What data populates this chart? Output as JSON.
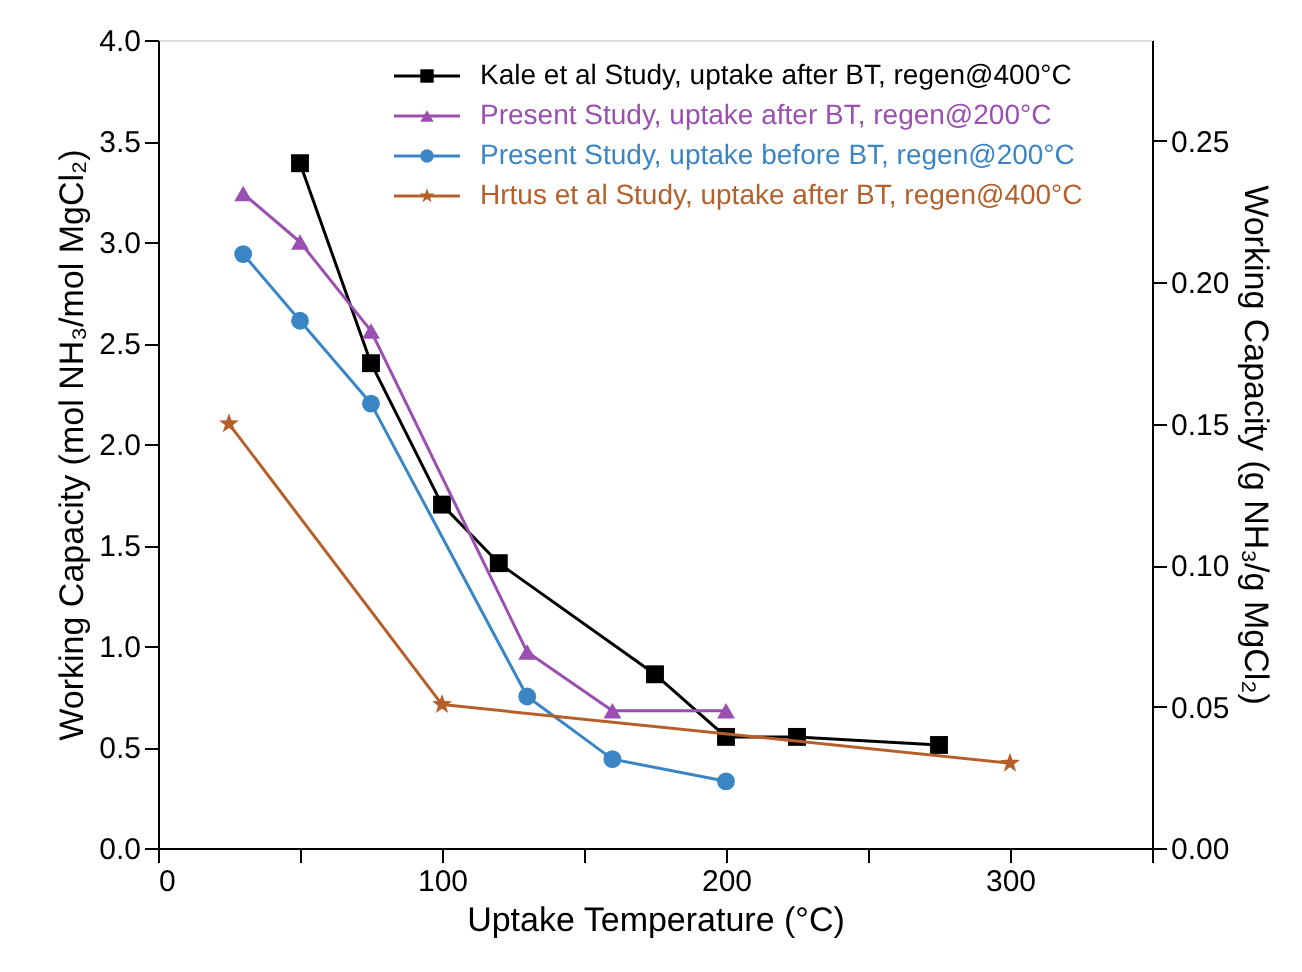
{
  "chart_data": {
    "type": "line",
    "xlabel": "Uptake Temperature (°C)",
    "ylabel": "Working Capacity (mol NH₃/mol MgCl₂)",
    "y2label": "Working Capacity (g NH₃/g MgCl₂)",
    "xlim": [
      0,
      350
    ],
    "xticks": [
      0,
      {
        "value": 50,
        "label": null
      },
      100,
      {
        "value": 150,
        "label": null
      },
      200,
      {
        "value": 250,
        "label": null
      },
      300,
      {
        "value": 350,
        "label": null
      }
    ],
    "ylim": [
      0,
      4
    ],
    "yticks": [
      {
        "value": 0,
        "label": "0.0"
      },
      0.5,
      {
        "value": 1,
        "label": "1.0"
      },
      1.5,
      {
        "value": 2,
        "label": "2.0"
      },
      2.5,
      {
        "value": 3,
        "label": "3.0"
      },
      3.5,
      {
        "value": 4,
        "label": "4.0"
      }
    ],
    "y2lim": [
      0,
      0.2857
    ],
    "y2ticks": [
      {
        "value": 0,
        "label": "0.00"
      },
      0.05,
      {
        "value": 0.1,
        "label": "0.10"
      },
      0.15,
      {
        "value": 0.2,
        "label": "0.20"
      },
      0.25
    ],
    "grid": false,
    "legend": "top right",
    "line_style": "solid",
    "series": [
      {
        "name": "Kale et al Study, uptake after BT, regen@400°C",
        "color": "#000000",
        "marker": "square",
        "x": [
          50,
          75,
          100,
          120,
          175,
          200,
          225,
          275
        ],
        "values": [
          3.39,
          2.4,
          1.7,
          1.41,
          0.86,
          0.55,
          0.55,
          0.51
        ]
      },
      {
        "name": "Present Study, uptake after BT, regen@200°C",
        "color": "#9b4fb0",
        "marker": "triangle",
        "x": [
          30,
          50,
          75,
          130,
          160,
          200
        ],
        "values": [
          3.24,
          3.0,
          2.56,
          0.97,
          0.68,
          0.68
        ]
      },
      {
        "name": "Present Study, uptake before BT, regen@200°C",
        "color": "#3a86c4",
        "marker": "circle",
        "x": [
          30,
          50,
          75,
          130,
          160,
          200
        ],
        "values": [
          2.94,
          2.61,
          2.2,
          0.75,
          0.44,
          0.33
        ]
      },
      {
        "name": "Hrtus et al Study, uptake after BT, regen@400°C",
        "color": "#b5602a",
        "marker": "star",
        "x": [
          25,
          100,
          300
        ],
        "values": [
          2.1,
          0.71,
          0.42
        ]
      }
    ]
  }
}
